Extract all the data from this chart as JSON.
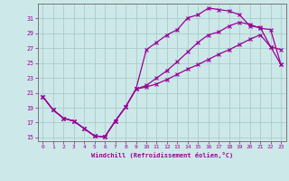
{
  "xlabel": "Windchill (Refroidissement éolien,°C)",
  "bg_color": "#cde8e8",
  "grid_color": "#a8cccc",
  "line_color": "#990099",
  "line1_x": [
    0,
    1,
    2,
    3,
    4,
    5,
    6,
    7,
    8,
    9,
    10,
    11,
    12,
    13,
    14,
    15,
    16,
    17,
    18,
    19,
    20,
    21,
    22,
    23
  ],
  "line1_y": [
    20.5,
    18.7,
    17.6,
    17.2,
    16.2,
    15.2,
    15.1,
    17.2,
    19.1,
    21.5,
    26.8,
    27.8,
    28.8,
    29.5,
    31.1,
    31.5,
    32.4,
    32.2,
    32.0,
    31.5,
    30.0,
    29.8,
    27.2,
    26.8
  ],
  "line2_x": [
    0,
    1,
    2,
    3,
    4,
    5,
    6,
    7,
    8,
    9,
    10,
    11,
    12,
    13,
    14,
    15,
    16,
    17,
    18,
    19,
    20,
    21,
    22,
    23
  ],
  "line2_y": [
    20.5,
    18.7,
    17.6,
    17.2,
    16.2,
    15.2,
    15.1,
    17.2,
    19.1,
    21.5,
    22.0,
    23.0,
    24.0,
    25.2,
    26.5,
    27.8,
    28.8,
    29.2,
    30.0,
    30.5,
    30.2,
    29.7,
    29.5,
    24.8
  ],
  "line3_x": [
    0,
    1,
    2,
    3,
    4,
    5,
    6,
    7,
    8,
    9,
    10,
    11,
    12,
    13,
    14,
    15,
    16,
    17,
    18,
    19,
    20,
    21,
    22,
    23
  ],
  "line3_y": [
    20.5,
    18.7,
    17.6,
    17.2,
    16.2,
    15.2,
    15.1,
    17.2,
    19.1,
    21.5,
    21.8,
    22.2,
    22.8,
    23.5,
    24.2,
    24.8,
    25.5,
    26.2,
    26.8,
    27.5,
    28.2,
    28.8,
    27.2,
    24.8
  ],
  "ylim": [
    14.5,
    33.0
  ],
  "xlim": [
    -0.5,
    23.5
  ],
  "yticks": [
    15,
    17,
    19,
    21,
    23,
    25,
    27,
    29,
    31
  ],
  "xticks": [
    0,
    1,
    2,
    3,
    4,
    5,
    6,
    7,
    8,
    9,
    10,
    11,
    12,
    13,
    14,
    15,
    16,
    17,
    18,
    19,
    20,
    21,
    22,
    23
  ]
}
